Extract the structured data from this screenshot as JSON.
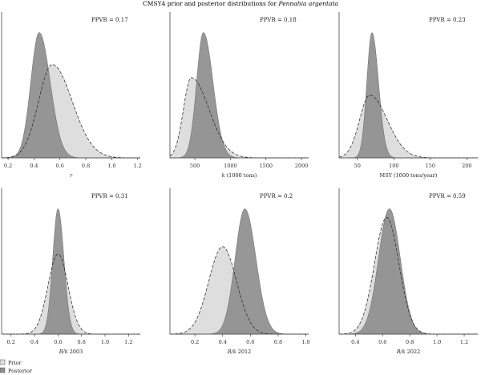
{
  "figure": {
    "title_prefix": "CMSY4 prior and posterior distributions for ",
    "title_species": "Pennahia argentata"
  },
  "legend": {
    "items": [
      {
        "label": "Prior",
        "color": "#dedede"
      },
      {
        "label": "Posterior",
        "color": "#8f8f8f"
      }
    ]
  },
  "colors": {
    "prior": "#dedede",
    "posterior": "#8f8f8f",
    "axis": "#444444"
  },
  "chart_data": [
    {
      "type": "area",
      "xlabel_italic": "r",
      "xlabel_rest": "",
      "ppvr": "PPVR = 0.17",
      "xlim": [
        0.15,
        1.22
      ],
      "xticks": [
        0.2,
        0.4,
        0.6,
        0.8,
        1.0,
        1.2
      ],
      "xtick_labels": [
        "0.2",
        "0.4",
        "0.6",
        "0.8",
        "1.0",
        "1.2"
      ],
      "prior": {
        "mode": 0.54,
        "sd_left": 0.105,
        "sd_right": 0.155,
        "relative_peak": 0.64
      },
      "posterior": {
        "mode": 0.44,
        "sd_left": 0.065,
        "sd_right": 0.085,
        "relative_peak": 0.86
      }
    },
    {
      "type": "area",
      "xlabel_italic": "k",
      "xlabel_rest": " (1000 tons)",
      "ppvr": "PPVR = 0.18",
      "xlim": [
        150,
        2100
      ],
      "xticks": [
        500,
        1000,
        1500,
        2000
      ],
      "xtick_labels": [
        "500",
        "1000",
        "1500",
        "2000"
      ],
      "prior": {
        "mode": 450,
        "sd_left": 110,
        "sd_right": 250,
        "relative_peak": 0.55
      },
      "posterior": {
        "mode": 620,
        "sd_left": 95,
        "sd_right": 135,
        "relative_peak": 0.86
      }
    },
    {
      "type": "area",
      "xlabel_italic": "",
      "xlabel_rest": "MSY (1000 tons/year)",
      "ppvr": "PPVR = 0.23",
      "xlim": [
        25,
        215
      ],
      "xticks": [
        50,
        100,
        150,
        200
      ],
      "xtick_labels": [
        "50",
        "100",
        "150",
        "200"
      ],
      "prior": {
        "mode": 67,
        "sd_left": 14,
        "sd_right": 24,
        "relative_peak": 0.43
      },
      "posterior": {
        "mode": 70,
        "sd_left": 7,
        "sd_right": 9,
        "relative_peak": 0.86
      }
    },
    {
      "type": "area",
      "xlabel_italic": "B/k",
      "xlabel_rest": " 2003",
      "ppvr": "PPVR = 0.31",
      "xlim": [
        0.12,
        1.3
      ],
      "xticks": [
        0.2,
        0.4,
        0.6,
        0.8,
        1.0,
        1.2
      ],
      "xtick_labels": [
        "0.2",
        "0.4",
        "0.6",
        "0.8",
        "1.0",
        "1.2"
      ],
      "prior": {
        "mode": 0.6,
        "sd_left": 0.085,
        "sd_right": 0.085,
        "relative_peak": 0.55
      },
      "posterior": {
        "mode": 0.6,
        "sd_left": 0.045,
        "sd_right": 0.05,
        "relative_peak": 0.86
      }
    },
    {
      "type": "area",
      "xlabel_italic": "B/k",
      "xlabel_rest": " 2012",
      "ppvr": "PPVR = 0.2",
      "xlim": [
        0.02,
        1.02
      ],
      "xticks": [
        0.2,
        0.4,
        0.6,
        0.8,
        1.0
      ],
      "xtick_labels": [
        "0.2",
        "0.4",
        "0.6",
        "0.8",
        "1.0"
      ],
      "prior": {
        "mode": 0.4,
        "sd_left": 0.1,
        "sd_right": 0.1,
        "relative_peak": 0.6
      },
      "posterior": {
        "mode": 0.56,
        "sd_left": 0.07,
        "sd_right": 0.08,
        "relative_peak": 0.86
      }
    },
    {
      "type": "area",
      "xlabel_italic": "B/k",
      "xlabel_rest": " 2022",
      "ppvr": "PPVR = 0.59",
      "xlim": [
        0.28,
        1.3
      ],
      "xticks": [
        0.4,
        0.6,
        0.8,
        1.0,
        1.2
      ],
      "xtick_labels": [
        "0.4",
        "0.6",
        "0.8",
        "1.0",
        "1.2"
      ],
      "prior": {
        "mode": 0.63,
        "sd_left": 0.09,
        "sd_right": 0.09,
        "relative_peak": 0.8
      },
      "posterior": {
        "mode": 0.65,
        "sd_left": 0.08,
        "sd_right": 0.08,
        "relative_peak": 0.86
      }
    }
  ]
}
